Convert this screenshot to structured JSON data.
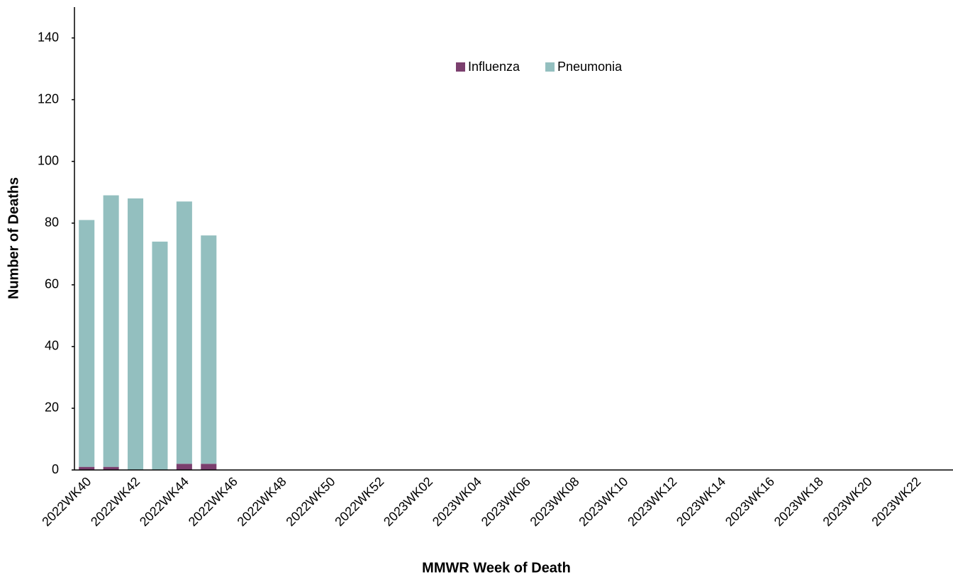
{
  "chart_data": {
    "type": "stacked_bar",
    "x_label": "MMWR Week of Death",
    "y_label": "Number of Deaths",
    "categories": [
      "2022WK40",
      null,
      "2022WK42",
      null,
      "2022WK44",
      null,
      "2022WK46",
      null,
      "2022WK48",
      null,
      "2022WK50",
      null,
      "2022WK52",
      null,
      "2023WK02",
      null,
      "2023WK04",
      null,
      "2023WK06",
      null,
      "2023WK08",
      null,
      "2023WK10",
      null,
      "2023WK12",
      null,
      "2023WK14",
      null,
      "2023WK16",
      null,
      "2023WK18",
      null,
      "2023WK20",
      null,
      "2023WK22",
      null
    ],
    "series": [
      {
        "name": "Influenza",
        "color": "#7b3f6e",
        "values": [
          1,
          1,
          0,
          0,
          2,
          2,
          null,
          null,
          null,
          null,
          null,
          null,
          null,
          null,
          null,
          null,
          null,
          null,
          null,
          null,
          null,
          null,
          null,
          null,
          null,
          null,
          null,
          null,
          null,
          null,
          null,
          null,
          null,
          null,
          null,
          null
        ]
      },
      {
        "name": "Pneumonia",
        "color": "#93bfbf",
        "values": [
          80,
          88,
          88,
          74,
          85,
          74,
          null,
          null,
          null,
          null,
          null,
          null,
          null,
          null,
          null,
          null,
          null,
          null,
          null,
          null,
          null,
          null,
          null,
          null,
          null,
          null,
          null,
          null,
          null,
          null,
          null,
          null,
          null,
          null,
          null,
          null
        ]
      }
    ],
    "ylim": [
      0,
      150
    ],
    "yticks": [
      0,
      20,
      40,
      60,
      80,
      100,
      120,
      140
    ],
    "grid": false,
    "legend": "top"
  }
}
